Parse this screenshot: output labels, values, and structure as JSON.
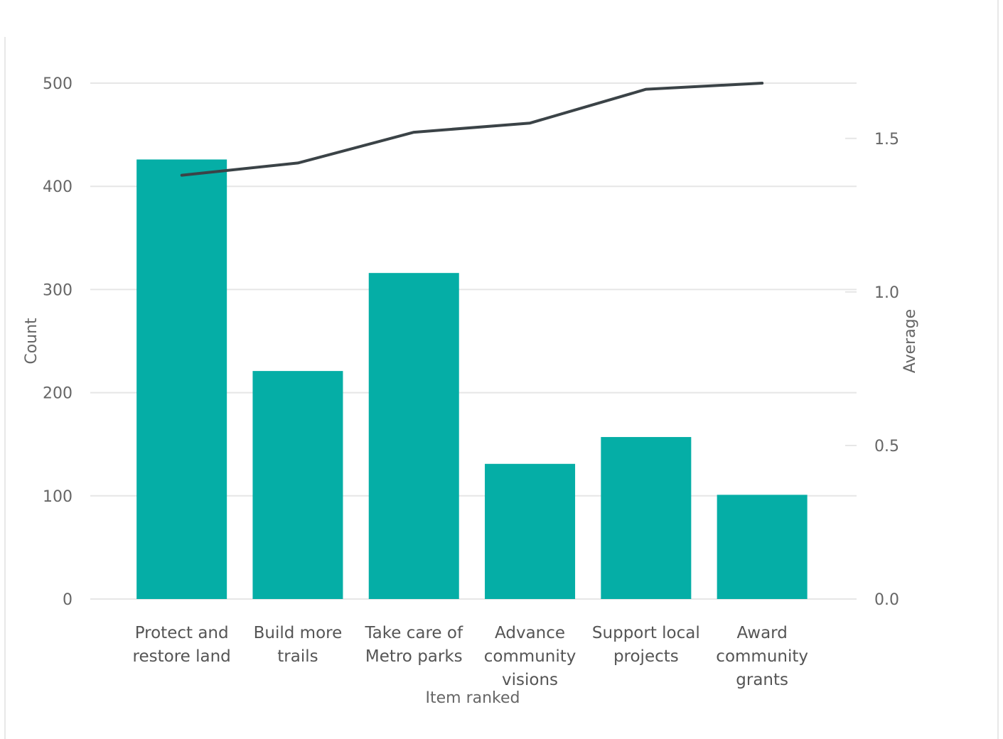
{
  "chart_data": {
    "type": "bar",
    "combo": "bar-with-line",
    "categories": [
      [
        "Protect and",
        "restore land"
      ],
      [
        "Build more",
        "trails"
      ],
      [
        "Take care of",
        "Metro parks"
      ],
      [
        "Advance",
        "community",
        "visions"
      ],
      [
        "Support local",
        "projects"
      ],
      [
        "Award",
        "community",
        "grants"
      ]
    ],
    "series": [
      {
        "type": "bar",
        "axis": "left",
        "values": [
          426,
          221,
          316,
          131,
          157,
          101
        ],
        "color": "#05aea6"
      },
      {
        "type": "line",
        "axis": "right",
        "values": [
          1.38,
          1.42,
          1.52,
          1.55,
          1.66,
          1.68
        ],
        "color": "#3b4347"
      }
    ],
    "xlabel": "Item ranked",
    "ylabel": "Count",
    "y2label": "Average",
    "ylim": [
      0,
      500
    ],
    "y2lim": [
      0,
      1.68
    ],
    "yticks": [
      "0",
      "100",
      "200",
      "300",
      "400",
      "500"
    ],
    "y2ticks": [
      "0.0",
      "0.5",
      "1.0",
      "1.5"
    ],
    "grid": true,
    "legend": "none"
  }
}
